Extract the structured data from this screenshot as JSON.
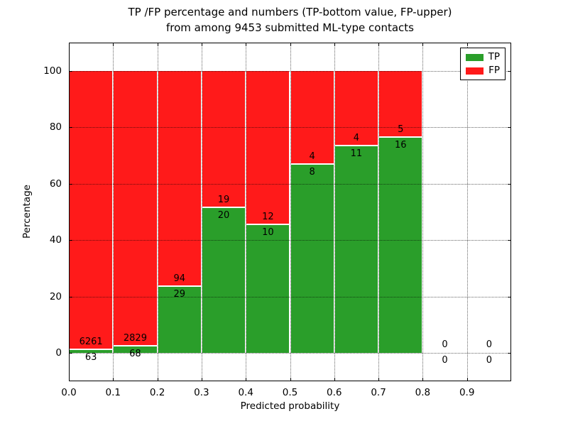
{
  "chart_data": {
    "type": "bar",
    "stacked": true,
    "title_line1": "TP /FP percentage and numbers (TP-bottom value, FP-upper)",
    "title_line2": "from among 9453 submitted ML-type contacts",
    "xlabel": "Predicted probability",
    "ylabel": "Percentage",
    "total_contacts": 9453,
    "bin_edges": [
      0.0,
      0.1,
      0.2,
      0.3,
      0.4,
      0.5,
      0.6,
      0.7,
      0.8,
      0.9,
      1.0
    ],
    "series": [
      {
        "name": "TP",
        "color": "#2a9e2a",
        "counts": [
          63,
          68,
          29,
          20,
          10,
          8,
          11,
          16,
          0,
          0
        ]
      },
      {
        "name": "FP",
        "color": "#ff1a1a",
        "counts": [
          6261,
          2829,
          94,
          19,
          12,
          4,
          4,
          5,
          0,
          0
        ]
      }
    ],
    "tp_percent": [
      1.0,
      2.3,
      23.6,
      51.3,
      45.5,
      66.7,
      73.3,
      76.2,
      0,
      0
    ],
    "xticks": [
      "0.0",
      "0.1",
      "0.2",
      "0.3",
      "0.4",
      "0.5",
      "0.6",
      "0.7",
      "0.8",
      "0.9"
    ],
    "xtick_values": [
      0.0,
      0.1,
      0.2,
      0.3,
      0.4,
      0.5,
      0.6,
      0.7,
      0.8,
      0.9
    ],
    "yticks": [
      0,
      20,
      40,
      60,
      80,
      100
    ],
    "xlim": [
      0.0,
      1.0
    ],
    "ylim": [
      -10,
      110
    ],
    "grid": "dotted",
    "legend": {
      "position": "upper right",
      "entries": [
        {
          "label": "TP",
          "color": "#2a9e2a"
        },
        {
          "label": "FP",
          "color": "#ff1a1a"
        }
      ]
    }
  }
}
